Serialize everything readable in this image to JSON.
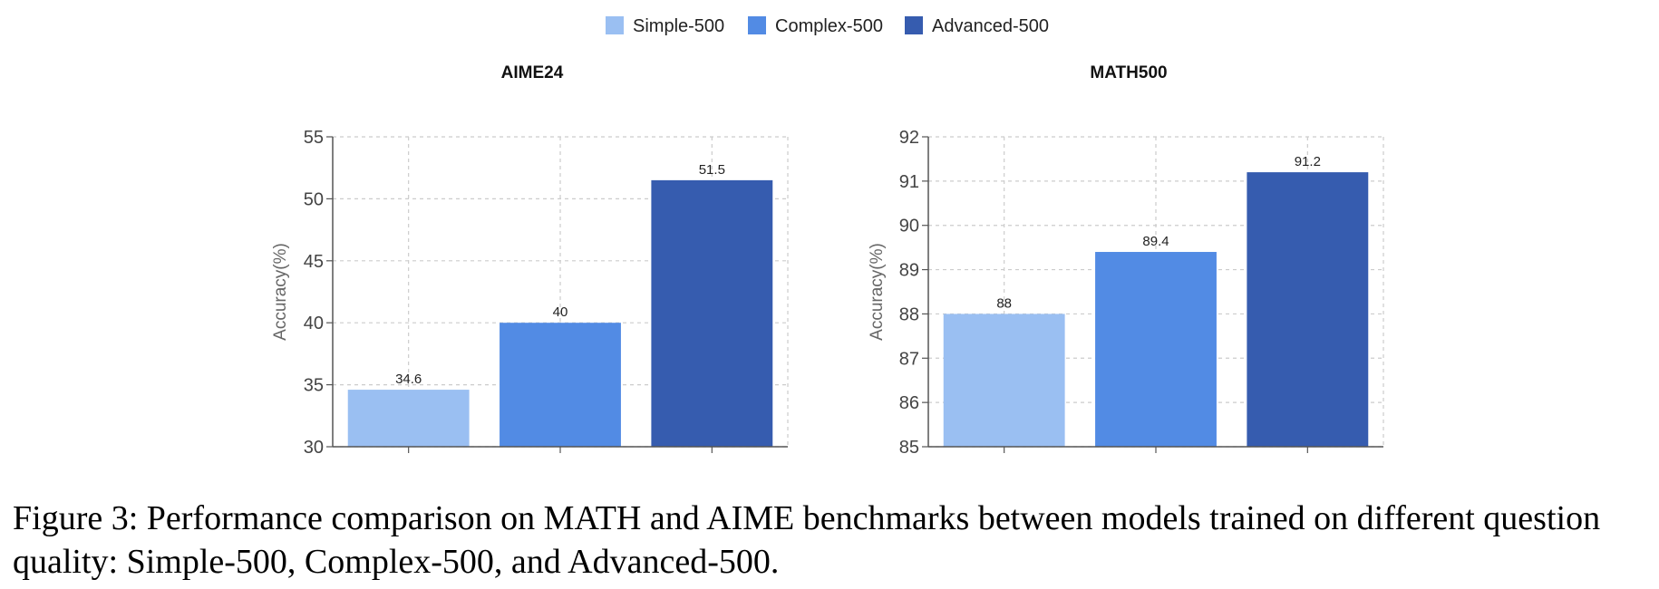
{
  "legend": [
    {
      "label": "Simple-500",
      "color": "#9ABFF2"
    },
    {
      "label": "Complex-500",
      "color": "#528BE4"
    },
    {
      "label": "Advanced-500",
      "color": "#365CAF"
    }
  ],
  "chart_data": [
    {
      "type": "bar",
      "title": "AIME24",
      "ylabel": "Accuracy(%)",
      "xlabel": "",
      "categories": [
        "Simple-500",
        "Complex-500",
        "Advanced-500"
      ],
      "values": [
        34.6,
        40,
        51.5
      ],
      "value_labels": [
        "34.6",
        "40",
        "51.5"
      ],
      "ylim": [
        30,
        55
      ],
      "yticks": [
        30,
        35,
        40,
        45,
        50,
        55
      ],
      "grid": true,
      "legend_position": "top-center"
    },
    {
      "type": "bar",
      "title": "MATH500",
      "ylabel": "Accuracy(%)",
      "xlabel": "",
      "categories": [
        "Simple-500",
        "Complex-500",
        "Advanced-500"
      ],
      "values": [
        88,
        89.4,
        91.2
      ],
      "value_labels": [
        "88",
        "89.4",
        "91.2"
      ],
      "ylim": [
        85,
        92
      ],
      "yticks": [
        85,
        86,
        87,
        88,
        89,
        90,
        91,
        92
      ],
      "grid": true,
      "legend_position": "top-center"
    }
  ],
  "caption": "Figure 3: Performance comparison on MATH and AIME benchmarks between models trained on different question quality: Simple-500, Complex-500, and Advanced-500."
}
